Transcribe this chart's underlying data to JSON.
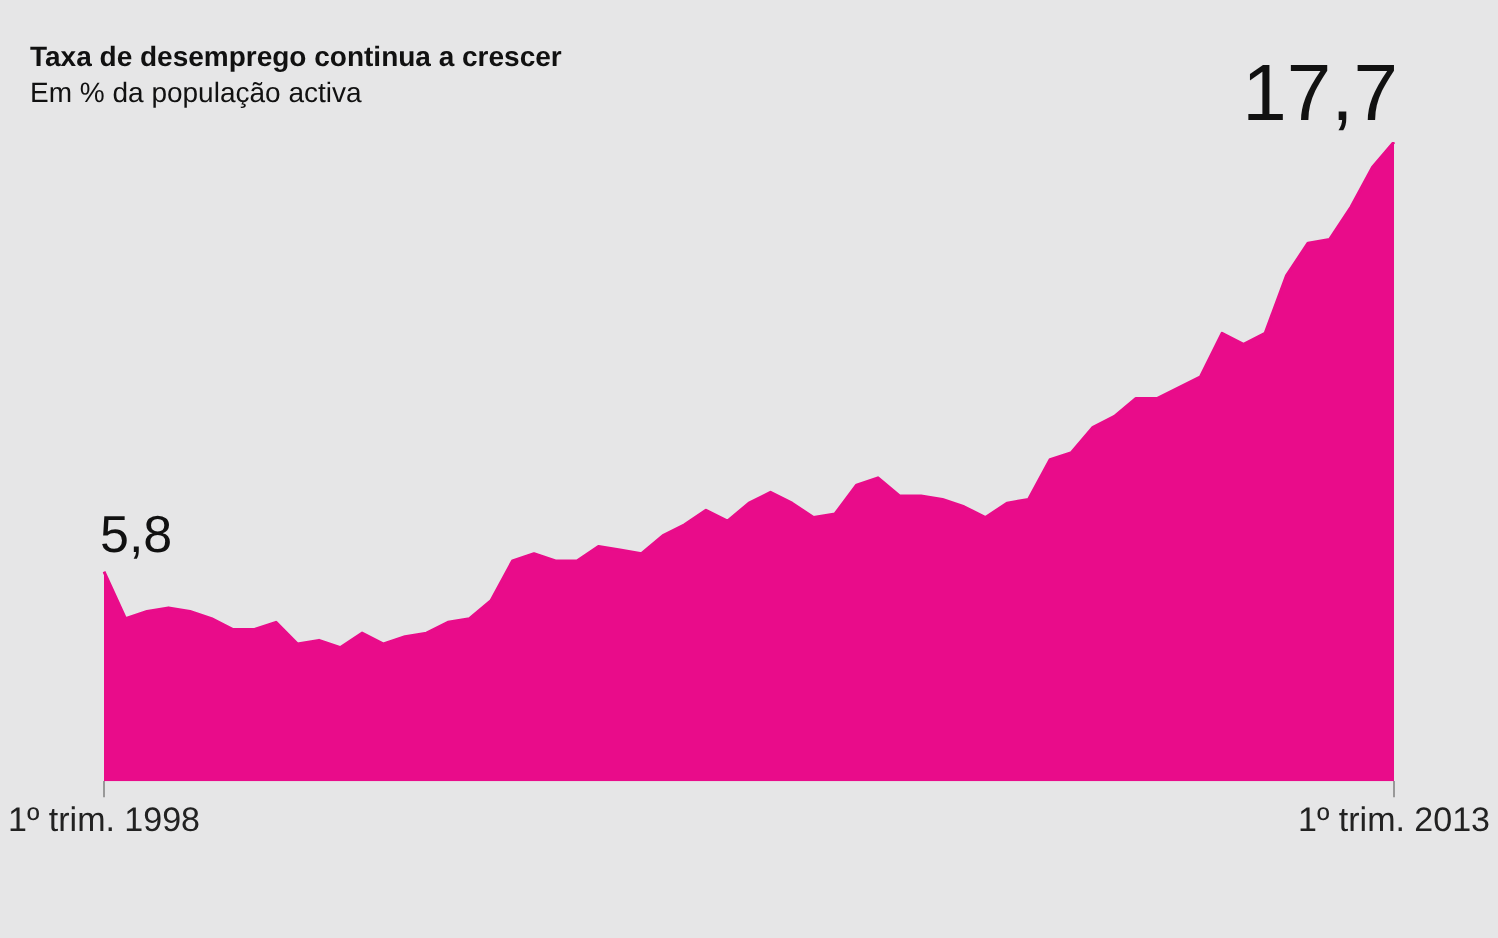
{
  "chart_data": {
    "type": "area",
    "title": "Taxa de desemprego continua a crescer",
    "subtitle": "Em % da população activa",
    "color": "#e90c8a",
    "categories": [
      "1º trim. 1998",
      null,
      null,
      null,
      null,
      null,
      null,
      null,
      null,
      null,
      null,
      null,
      null,
      null,
      null,
      null,
      null,
      null,
      null,
      null,
      null,
      null,
      null,
      null,
      null,
      null,
      null,
      null,
      null,
      null,
      null,
      null,
      null,
      null,
      null,
      null,
      null,
      null,
      null,
      null,
      null,
      null,
      null,
      null,
      null,
      null,
      null,
      null,
      null,
      null,
      null,
      null,
      null,
      null,
      null,
      null,
      null,
      null,
      null,
      null,
      "1º trim. 2013"
    ],
    "values": [
      5.8,
      4.5,
      4.7,
      4.8,
      4.7,
      4.5,
      4.2,
      4.2,
      4.4,
      3.8,
      3.9,
      3.7,
      4.1,
      3.8,
      4.0,
      4.1,
      4.4,
      4.5,
      5.0,
      6.1,
      6.3,
      6.1,
      6.1,
      6.5,
      6.4,
      6.3,
      6.8,
      7.1,
      7.5,
      7.2,
      7.7,
      8.0,
      7.7,
      7.3,
      7.4,
      8.2,
      8.4,
      7.9,
      7.9,
      7.8,
      7.6,
      7.3,
      7.7,
      7.8,
      8.9,
      9.1,
      9.8,
      10.1,
      10.6,
      10.6,
      10.9,
      11.2,
      12.4,
      12.1,
      12.4,
      14.0,
      14.9,
      15.0,
      15.9,
      17.0,
      17.7
    ],
    "value_labels": [
      "5,8",
      null,
      null,
      null,
      null,
      null,
      null,
      null,
      null,
      null,
      null,
      null,
      null,
      null,
      null,
      null,
      null,
      null,
      null,
      null,
      null,
      null,
      null,
      null,
      null,
      null,
      null,
      null,
      null,
      null,
      null,
      null,
      null,
      null,
      null,
      null,
      null,
      null,
      null,
      null,
      null,
      null,
      null,
      null,
      null,
      null,
      null,
      null,
      null,
      null,
      null,
      null,
      null,
      null,
      null,
      null,
      null,
      null,
      null,
      null,
      "17,7"
    ],
    "grid": false,
    "legend": false
  }
}
